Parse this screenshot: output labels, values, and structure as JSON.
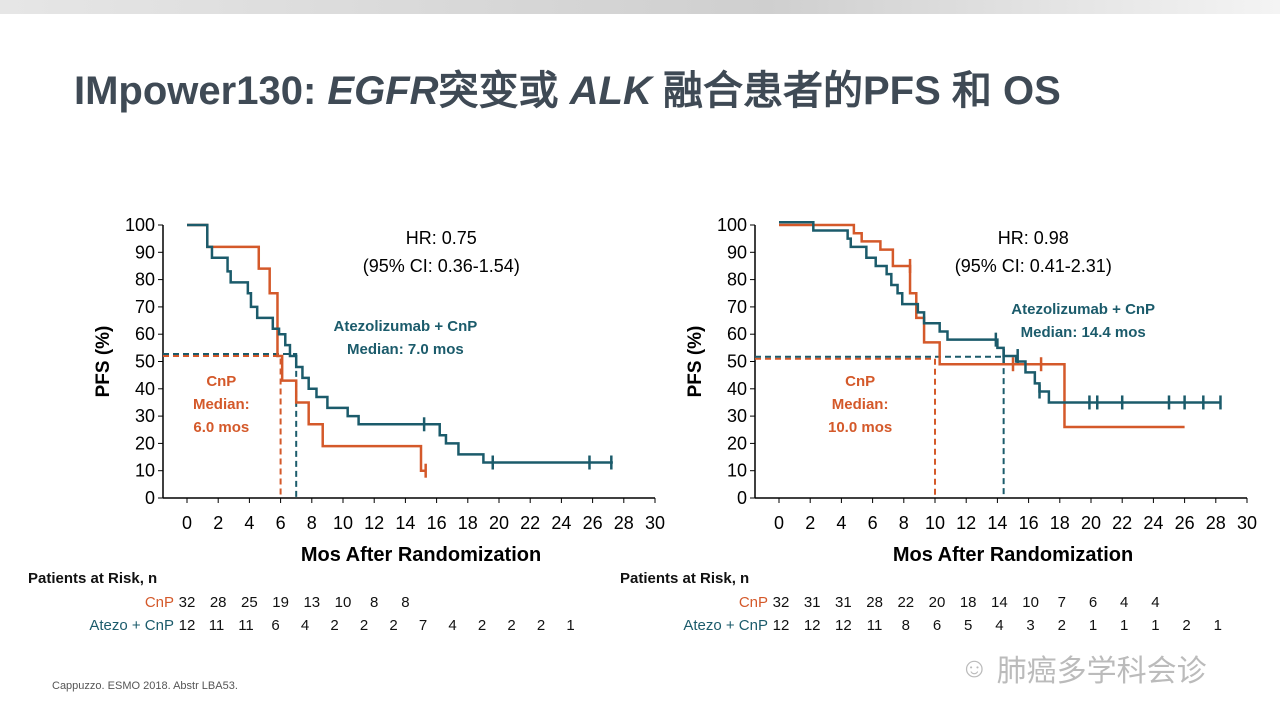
{
  "title": {
    "prefix": "IMpower130: ",
    "egfr": "EGFR",
    "mid": "突变或 ",
    "alk": "ALK",
    "suffix": " 融合患者的PFS 和 OS"
  },
  "colors": {
    "cnp": "#d4592a",
    "atezo": "#1b5b6b"
  },
  "chart_data": [
    {
      "type": "line",
      "ylabel": "PFS (%)",
      "xlabel": "Mos After Randomization",
      "xlim": [
        0,
        30
      ],
      "ylim": [
        0,
        100
      ],
      "xticks": [
        0,
        2,
        4,
        6,
        8,
        10,
        12,
        14,
        16,
        18,
        20,
        22,
        24,
        26,
        28,
        30
      ],
      "yticks": [
        0,
        10,
        20,
        30,
        40,
        50,
        60,
        70,
        80,
        90,
        100
      ],
      "hr": "HR: 0.75",
      "ci": "(95% CI: 0.36-1.54)",
      "atezo_label": "Atezolizumab + CnP",
      "atezo_median": "Median: 7.0 mos",
      "cnp_label": "CnP",
      "cnp_median_1": "Median:",
      "cnp_median_2": "6.0 mos",
      "medians": {
        "cnp": 6.0,
        "atezo": 7.0,
        "level": 52
      },
      "series": [
        {
          "name": "CnP",
          "points": [
            [
              0,
              100
            ],
            [
              1.3,
              92
            ],
            [
              4.6,
              84
            ],
            [
              5.3,
              75
            ],
            [
              5.8,
              52
            ],
            [
              6.1,
              43
            ],
            [
              7.0,
              35
            ],
            [
              7.8,
              27
            ],
            [
              8.7,
              19
            ],
            [
              15,
              10
            ],
            [
              15.3,
              10
            ]
          ],
          "censors": [
            [
              15.3,
              10
            ]
          ]
        },
        {
          "name": "Atezo + CnP",
          "points": [
            [
              0,
              100
            ],
            [
              1.3,
              92
            ],
            [
              1.6,
              88
            ],
            [
              2.6,
              83
            ],
            [
              2.8,
              79
            ],
            [
              3.9,
              75
            ],
            [
              4.1,
              70
            ],
            [
              4.5,
              66
            ],
            [
              5.5,
              62
            ],
            [
              5.9,
              60
            ],
            [
              6.3,
              56
            ],
            [
              6.6,
              52
            ],
            [
              7.0,
              48
            ],
            [
              7.4,
              44
            ],
            [
              7.8,
              40
            ],
            [
              8.3,
              37
            ],
            [
              9.0,
              33
            ],
            [
              10.3,
              30
            ],
            [
              11,
              27
            ],
            [
              16.2,
              23
            ],
            [
              16.6,
              20
            ],
            [
              17.4,
              16
            ],
            [
              19,
              13
            ],
            [
              27.3,
              13
            ]
          ],
          "censors": [
            [
              15.2,
              27
            ],
            [
              19.6,
              13
            ],
            [
              25.8,
              13
            ],
            [
              27.2,
              13
            ]
          ]
        }
      ],
      "risk": {
        "header": "Patients at Risk, n",
        "cnp_label": "CnP",
        "atezo_label": "Atezo + CnP",
        "cnp": [
          "32",
          "28",
          "25",
          "19",
          "13",
          "10",
          "8",
          "8"
        ],
        "atezo": [
          "12",
          "11",
          "11",
          "6",
          "4",
          "2",
          "2",
          "2",
          "7",
          "4",
          "2",
          "2",
          "2",
          "1"
        ]
      }
    },
    {
      "type": "line",
      "ylabel": "PFS (%)",
      "xlabel": "Mos After Randomization",
      "xlim": [
        0,
        30
      ],
      "ylim": [
        0,
        100
      ],
      "xticks": [
        0,
        2,
        4,
        6,
        8,
        10,
        12,
        14,
        16,
        18,
        20,
        22,
        24,
        26,
        28,
        30
      ],
      "yticks": [
        0,
        10,
        20,
        30,
        40,
        50,
        60,
        70,
        80,
        90,
        100
      ],
      "hr": "HR: 0.98",
      "ci": "(95% CI: 0.41-2.31)",
      "atezo_label": "Atezolizumab + CnP",
      "atezo_median": "Median: 14.4 mos",
      "cnp_label": "CnP",
      "cnp_median_1": "Median:",
      "cnp_median_2": "10.0 mos",
      "medians": {
        "cnp": 10.0,
        "atezo": 14.4,
        "level": 51
      },
      "series": [
        {
          "name": "CnP",
          "points": [
            [
              0,
              100
            ],
            [
              4.8,
              97
            ],
            [
              5.3,
              94
            ],
            [
              6.5,
              91
            ],
            [
              7.3,
              85
            ],
            [
              8.4,
              75
            ],
            [
              8.8,
              66
            ],
            [
              9.3,
              57
            ],
            [
              10.3,
              49
            ],
            [
              18.3,
              49
            ],
            [
              18.3,
              26
            ],
            [
              26,
              26
            ]
          ],
          "censors": [
            [
              8.4,
              85
            ],
            [
              15,
              49
            ],
            [
              16.8,
              49
            ]
          ]
        },
        {
          "name": "Atezo + CnP",
          "points": [
            [
              0,
              101
            ],
            [
              1.7,
              101
            ],
            [
              2.2,
              98
            ],
            [
              4.4,
              95
            ],
            [
              4.6,
              92
            ],
            [
              5.6,
              88
            ],
            [
              6.2,
              85
            ],
            [
              6.9,
              82
            ],
            [
              7.2,
              78
            ],
            [
              7.6,
              75
            ],
            [
              7.9,
              71
            ],
            [
              8.9,
              68
            ],
            [
              9.3,
              64
            ],
            [
              10.3,
              61
            ],
            [
              10.8,
              58
            ],
            [
              14,
              55
            ],
            [
              14.4,
              52
            ],
            [
              15.2,
              50
            ],
            [
              15.8,
              46
            ],
            [
              16.4,
              42
            ],
            [
              16.7,
              39
            ],
            [
              17.3,
              35
            ],
            [
              28.3,
              35
            ]
          ],
          "censors": [
            [
              13.9,
              58
            ],
            [
              14.4,
              52
            ],
            [
              15.3,
              52
            ],
            [
              16.7,
              39
            ],
            [
              19.9,
              35
            ],
            [
              20.4,
              35
            ],
            [
              22,
              35
            ],
            [
              25,
              35
            ],
            [
              26,
              35
            ],
            [
              27.2,
              35
            ],
            [
              28.3,
              35
            ]
          ]
        }
      ],
      "risk": {
        "header": "Patients at Risk, n",
        "cnp_label": "CnP",
        "atezo_label": "Atezo + CnP",
        "cnp": [
          "32",
          "31",
          "31",
          "28",
          "22",
          "20",
          "18",
          "14",
          "10",
          "7",
          "6",
          "4",
          "4"
        ],
        "atezo": [
          "12",
          "12",
          "12",
          "11",
          "8",
          "6",
          "5",
          "4",
          "3",
          "2",
          "1",
          "1",
          "1",
          "2",
          "1"
        ]
      }
    }
  ],
  "citation": "Cappuzzo. ESMO 2018. Abstr LBA53.",
  "watermark": "肺癌多学科会诊"
}
